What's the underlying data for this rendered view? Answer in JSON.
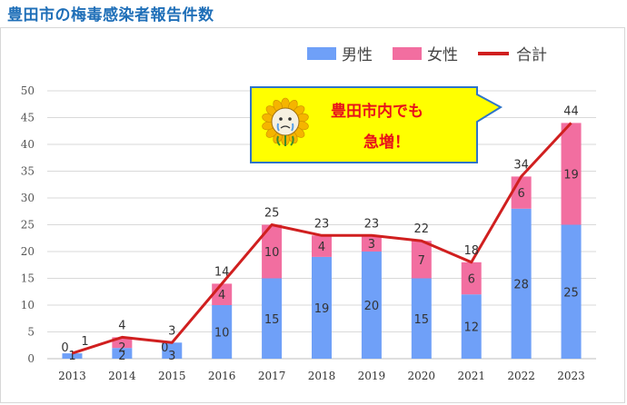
{
  "title": "豊田市の梅毒感染者報告件数",
  "legend": {
    "male": "男性",
    "female": "女性",
    "total": "合計"
  },
  "colors": {
    "male": "#6fa0f8",
    "female": "#f26ea0",
    "total": "#d01f1f",
    "callout_fill": "#ffff00",
    "callout_border": "#2e74c9",
    "callout_text": "#e8101a"
  },
  "callout": {
    "line1": "豊田市内でも",
    "line2": "急増！",
    "icon": "sunflower-mascot-crying-icon"
  },
  "chart_data": {
    "type": "bar",
    "stacked": true,
    "categories": [
      "2013",
      "2014",
      "2015",
      "2016",
      "2017",
      "2018",
      "2019",
      "2020",
      "2021",
      "2022",
      "2023"
    ],
    "series": [
      {
        "name": "男性",
        "values": [
          1,
          2,
          3,
          10,
          15,
          19,
          20,
          15,
          12,
          28,
          25
        ]
      },
      {
        "name": "女性",
        "values": [
          0,
          2,
          0,
          4,
          10,
          4,
          3,
          7,
          6,
          6,
          19
        ]
      },
      {
        "name": "合計",
        "type": "line",
        "values": [
          1,
          4,
          3,
          14,
          25,
          23,
          23,
          22,
          18,
          34,
          44
        ]
      }
    ],
    "ylim": [
      0,
      50
    ],
    "yticks": [
      0,
      5,
      10,
      15,
      20,
      25,
      30,
      35,
      40,
      45,
      50
    ],
    "grid": true,
    "legend_position": "top-right"
  }
}
